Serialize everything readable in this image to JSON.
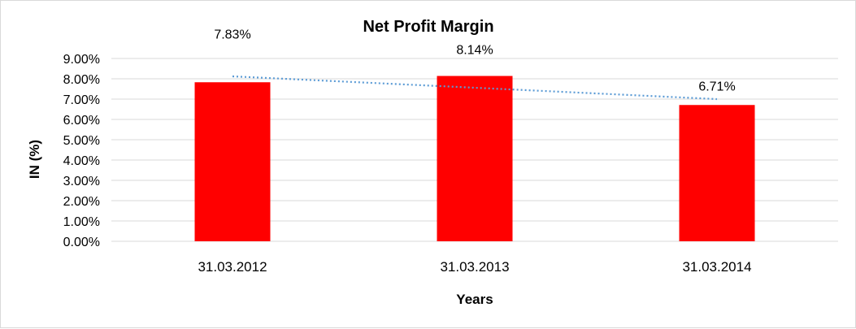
{
  "chart_data": {
    "type": "bar",
    "title": "Net Profit Margin",
    "xlabel": "Years",
    "ylabel": "IN (%)",
    "categories": [
      "31.03.2012",
      "31.03.2013",
      "31.03.2014"
    ],
    "values": [
      7.83,
      8.14,
      6.71
    ],
    "data_labels": [
      "7.83%",
      "8.14%",
      "6.71%"
    ],
    "ylim": [
      0,
      9
    ],
    "yticks": [
      0,
      1,
      2,
      3,
      4,
      5,
      6,
      7,
      8,
      9
    ],
    "ytick_labels": [
      "0.00%",
      "1.00%",
      "2.00%",
      "3.00%",
      "4.00%",
      "5.00%",
      "6.00%",
      "7.00%",
      "8.00%",
      "9.00%"
    ],
    "trendline": {
      "type": "linear",
      "style": "dotted"
    },
    "grid": true,
    "legend": "none",
    "colors": {
      "bar": "#ff0000",
      "trendline": "#5b9bd5",
      "grid": "#d9d9d9"
    }
  }
}
